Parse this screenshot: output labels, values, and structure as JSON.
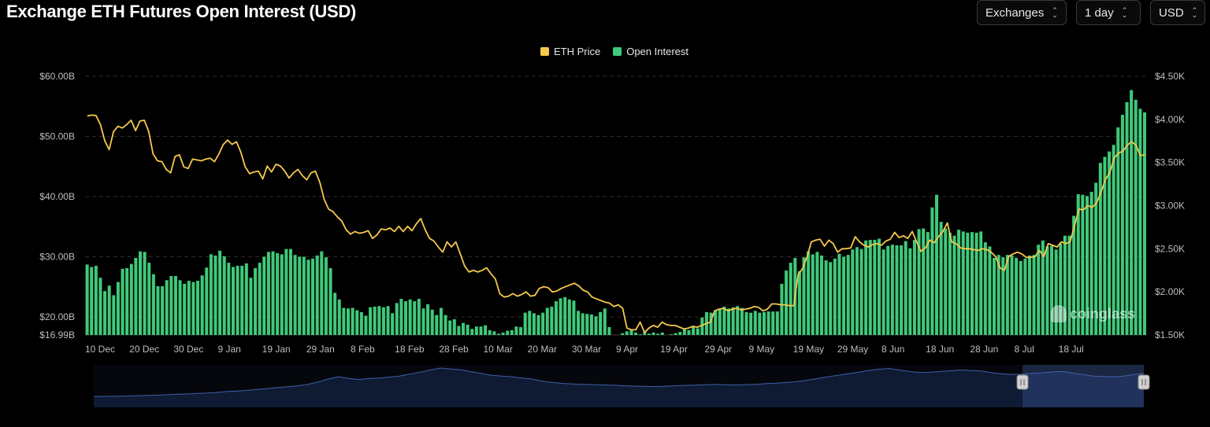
{
  "title": "Exchange ETH Futures Open Interest (USD)",
  "controls": {
    "exchanges": "Exchanges",
    "interval": "1 day",
    "currency": "USD"
  },
  "watermark": "coinglass",
  "chart_data": {
    "type": "bar+line",
    "title": "Exchange ETH Futures Open Interest (USD)",
    "legend": {
      "placement": "top-center"
    },
    "series": [
      {
        "name": "ETH Price",
        "type": "line",
        "axis": "right",
        "color": "#f6c94b",
        "values": [
          4040,
          4050,
          4045,
          3940,
          3750,
          3650,
          3860,
          3920,
          3900,
          3940,
          3990,
          3870,
          3980,
          3990,
          3860,
          3600,
          3520,
          3510,
          3420,
          3380,
          3570,
          3590,
          3450,
          3430,
          3540,
          3530,
          3520,
          3540,
          3550,
          3510,
          3600,
          3710,
          3760,
          3710,
          3740,
          3620,
          3450,
          3370,
          3390,
          3400,
          3310,
          3460,
          3390,
          3480,
          3460,
          3400,
          3320,
          3380,
          3420,
          3350,
          3300,
          3380,
          3400,
          3270,
          3070,
          2960,
          2930,
          2870,
          2820,
          2720,
          2670,
          2700,
          2680,
          2690,
          2710,
          2620,
          2660,
          2730,
          2720,
          2740,
          2700,
          2760,
          2700,
          2760,
          2710,
          2790,
          2850,
          2720,
          2620,
          2590,
          2520,
          2460,
          2580,
          2520,
          2580,
          2440,
          2300,
          2230,
          2250,
          2230,
          2250,
          2280,
          2210,
          2150,
          1980,
          1940,
          1950,
          1980,
          1950,
          1970,
          2000,
          1950,
          1960,
          2040,
          2060,
          2050,
          2000,
          2010,
          2040,
          2060,
          2080,
          2100,
          2070,
          2020,
          2000,
          1940,
          1920,
          1900,
          1880,
          1870,
          1830,
          1850,
          1810,
          1580,
          1560,
          1560,
          1650,
          1530,
          1580,
          1610,
          1590,
          1650,
          1620,
          1610,
          1610,
          1590,
          1570,
          1580,
          1600,
          1590,
          1610,
          1630,
          1650,
          1780,
          1800,
          1810,
          1780,
          1800,
          1810,
          1790,
          1800,
          1810,
          1830,
          1820,
          1780,
          1800,
          1860,
          1860,
          1850,
          1850,
          1840,
          1840,
          2200,
          2270,
          2400,
          2580,
          2600,
          2610,
          2530,
          2600,
          2560,
          2460,
          2500,
          2500,
          2510,
          2640,
          2580,
          2540,
          2520,
          2550,
          2560,
          2540,
          2590,
          2610,
          2690,
          2630,
          2650,
          2620,
          2700,
          2580,
          2470,
          2510,
          2600,
          2570,
          2640,
          2700,
          2800,
          2580,
          2560,
          2510,
          2500,
          2500,
          2490,
          2480,
          2500,
          2490,
          2460,
          2410,
          2280,
          2250,
          2410,
          2440,
          2460,
          2440,
          2400,
          2400,
          2410,
          2480,
          2410,
          2560,
          2540,
          2520,
          2580,
          2560,
          2580,
          2770,
          2960,
          2950,
          3000,
          2980,
          3030,
          3150,
          3300,
          3380,
          3550,
          3610,
          3630,
          3700,
          3740,
          3700,
          3580,
          3590
        ]
      },
      {
        "name": "Open Interest",
        "type": "bar",
        "axis": "left",
        "color": "#3fc97a",
        "values": [
          28.7,
          28.3,
          28.5,
          26.5,
          24.3,
          25.2,
          23.6,
          25.8,
          28.0,
          28.1,
          28.8,
          29.8,
          30.9,
          30.8,
          29.0,
          27.1,
          25.1,
          25.1,
          26.1,
          26.8,
          26.8,
          26.1,
          25.5,
          26.0,
          25.8,
          26.0,
          26.9,
          28.2,
          30.4,
          30.2,
          31.0,
          30.1,
          29.0,
          28.3,
          28.5,
          28.5,
          28.9,
          26.5,
          28.1,
          29.0,
          30.0,
          30.8,
          30.9,
          30.6,
          30.4,
          31.3,
          31.3,
          30.3,
          30.0,
          30.0,
          29.5,
          29.7,
          30.2,
          30.9,
          29.9,
          28.1,
          24.0,
          22.9,
          21.5,
          21.4,
          21.5,
          21.1,
          20.8,
          20.2,
          21.6,
          21.7,
          21.8,
          21.6,
          21.8,
          20.6,
          22.3,
          23.0,
          22.6,
          22.9,
          22.6,
          23.0,
          21.4,
          22.1,
          21.2,
          20.3,
          21.5,
          20.3,
          19.4,
          19.6,
          18.5,
          19.0,
          18.7,
          18.0,
          18.4,
          18.4,
          18.6,
          17.8,
          17.6,
          17.2,
          17.4,
          17.7,
          17.8,
          18.4,
          18.3,
          20.7,
          21.0,
          20.6,
          20.3,
          20.7,
          21.5,
          21.7,
          22.6,
          23.1,
          23.3,
          22.9,
          22.7,
          21.0,
          20.6,
          20.5,
          20.4,
          20.1,
          20.8,
          21.4,
          18.3,
          17.0,
          17.0,
          17.3,
          17.6,
          17.8,
          17.4,
          17.1,
          17.5,
          17.2,
          17.4,
          17.2,
          17.4,
          17.0,
          17.1,
          17.3,
          17.5,
          18.0,
          17.8,
          18.3,
          18.1,
          19.9,
          20.8,
          20.7,
          21.1,
          21.3,
          21.7,
          21.4,
          21.6,
          21.8,
          21.5,
          20.8,
          20.7,
          21.0,
          20.7,
          20.8,
          20.9,
          20.9,
          20.9,
          25.5,
          27.7,
          29.0,
          29.8,
          27.6,
          29.9,
          30.9,
          30.4,
          30.8,
          30.2,
          29.4,
          29.1,
          29.7,
          30.5,
          30.0,
          30.3,
          31.2,
          31.6,
          31.3,
          32.7,
          32.8,
          32.8,
          33.0,
          31.2,
          31.8,
          32.0,
          31.9,
          31.9,
          32.6,
          31.4,
          32.8,
          34.6,
          34.7,
          34.1,
          38.2,
          40.3,
          35.8,
          34.7,
          34.0,
          33.5,
          34.5,
          34.2,
          34.0,
          34.1,
          34.0,
          34.2,
          32.4,
          31.7,
          29.8,
          30.3,
          29.9,
          30.3,
          30.2,
          29.8,
          29.3,
          29.7,
          30.2,
          30.3,
          32.0,
          32.7,
          31.7,
          31.8,
          31.2,
          32.2,
          33.5,
          33.5,
          36.8,
          40.4,
          40.3,
          40.1,
          40.8,
          42.3,
          45.6,
          46.6,
          47.5,
          48.6,
          51.5,
          53.6,
          55.7,
          57.7,
          56.1,
          54.6,
          54.0
        ]
      }
    ],
    "y_left": {
      "min": 16.99,
      "max": 60,
      "ticks": [
        "$60.00B",
        "$50.00B",
        "$40.00B",
        "$30.00B",
        "$20.00B",
        "$16.99B"
      ],
      "tick_values": [
        60,
        50,
        40,
        30,
        20,
        16.99
      ]
    },
    "y_right": {
      "min": 1500,
      "max": 4500,
      "ticks": [
        "$4.50K",
        "$4.00K",
        "$3.50K",
        "$3.00K",
        "$2.50K",
        "$2.00K",
        "$1.50K"
      ],
      "tick_values": [
        4500,
        4000,
        3500,
        3000,
        2500,
        2000,
        1500
      ]
    },
    "x_ticks": [
      "10 Dec",
      "20 Dec",
      "30 Dec",
      "9 Jan",
      "19 Jan",
      "29 Jan",
      "8 Feb",
      "18 Feb",
      "28 Feb",
      "10 Mar",
      "20 Mar",
      "30 Mar",
      "9 Apr",
      "19 Apr",
      "29 Apr",
      "9 May",
      "19 May",
      "29 May",
      "8 Jun",
      "18 Jun",
      "28 Jun",
      "8 Jul",
      "18 Jul"
    ],
    "x_tick_index": [
      0,
      10,
      20,
      30,
      40,
      50,
      60,
      70,
      80,
      90,
      100,
      110,
      120,
      130,
      140,
      150,
      160,
      170,
      180,
      190,
      200,
      210,
      220
    ],
    "grid": true,
    "navigator": {
      "values": [
        1.0,
        1.0,
        1.1,
        1.2,
        1.4,
        1.6,
        1.8,
        2.1,
        2.4,
        2.6,
        2.9,
        3.2,
        3.6,
        4.2,
        4.5,
        5.0,
        5.6,
        6.2,
        6.8,
        7.4,
        8.0,
        9.0,
        10.5,
        12.5,
        14.0,
        13.0,
        12.2,
        12.8,
        13.2,
        13.8,
        14.5,
        15.8,
        17.0,
        18.5,
        19.8,
        19.2,
        18.6,
        17.4,
        16.2,
        15.0,
        14.5,
        14.0,
        13.2,
        12.5,
        11.0,
        10.2,
        9.6,
        9.2,
        9.0,
        8.8,
        8.6,
        8.4,
        8.1,
        7.8,
        7.6,
        7.5,
        7.7,
        8.0,
        8.3,
        8.5,
        8.7,
        8.9,
        8.7,
        8.6,
        8.8,
        9.0,
        9.5,
        9.8,
        10.2,
        10.8,
        11.8,
        12.8,
        14.0,
        15.0,
        16.0,
        17.0,
        18.2,
        19.0,
        19.5,
        18.5,
        17.5,
        16.8,
        17.0,
        17.5,
        18.0,
        18.5,
        18.2,
        17.8,
        16.8,
        16.0,
        15.6,
        15.8,
        16.2,
        16.5,
        17.2,
        17.5,
        16.5,
        15.5,
        14.5,
        14.2,
        13.9,
        14.5,
        15.5,
        16.2
      ]
    }
  }
}
